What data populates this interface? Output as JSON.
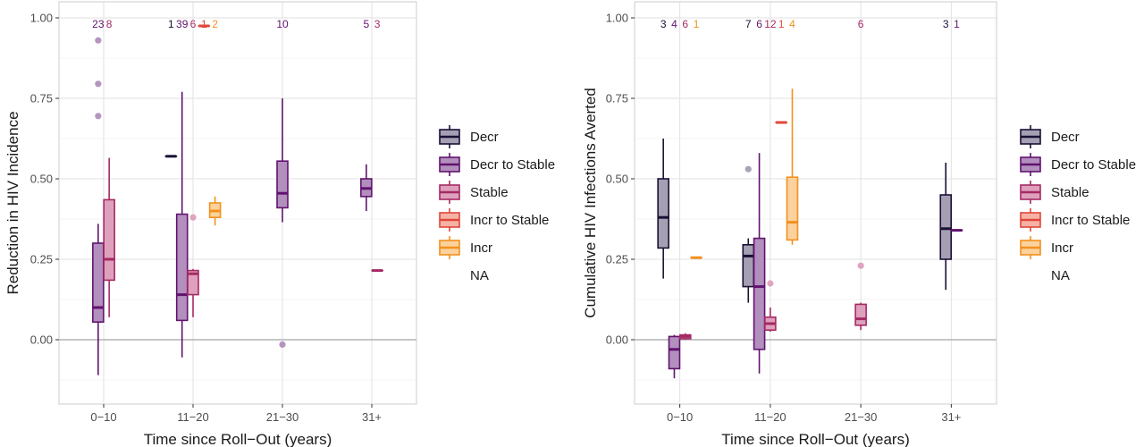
{
  "colors": {
    "Decr": {
      "fill": "#a59fb3",
      "stroke": "#1b1034"
    },
    "Decr to Stable": {
      "fill": "#b28fbd",
      "stroke": "#61136f"
    },
    "Stable": {
      "fill": "#dea0bd",
      "stroke": "#a52a64"
    },
    "Incr to Stable": {
      "fill": "#f6b3a5",
      "stroke": "#e0473a"
    },
    "Incr": {
      "fill": "#fbd29d",
      "stroke": "#f2911e"
    }
  },
  "chart_data": [
    {
      "type": "box",
      "title": "",
      "xlabel": "Time since Roll−Out (years)",
      "ylabel": "Reduction in HIV Incidence",
      "ylim": [
        -0.2,
        1.05
      ],
      "y_ticks": [
        0.0,
        0.25,
        0.5,
        0.75,
        1.0
      ],
      "y_tick_labels": [
        "0.00",
        "0.25",
        "0.50",
        "0.75",
        "1.00"
      ],
      "categories": [
        "0−10",
        "11−20",
        "21−30",
        "31+"
      ],
      "legend": [
        "Decr",
        "Decr to Stable",
        "Stable",
        "Incr to Stable",
        "Incr",
        "NA"
      ],
      "boxes": [
        {
          "group": "0−10",
          "series": "Decr to Stable",
          "n": "23",
          "min": -0.11,
          "q1": 0.055,
          "median": 0.1,
          "q3": 0.3,
          "max": 0.36,
          "outliers": [
            0.93,
            0.795,
            0.695
          ]
        },
        {
          "group": "0−10",
          "series": "Stable",
          "n": "8",
          "min": 0.07,
          "q1": 0.185,
          "median": 0.25,
          "q3": 0.435,
          "max": 0.565,
          "outliers": []
        },
        {
          "group": "11−20",
          "series": "Decr",
          "n": "1",
          "min": 0.57,
          "q1": 0.57,
          "median": 0.57,
          "q3": 0.57,
          "max": 0.57,
          "outliers": []
        },
        {
          "group": "11−20",
          "series": "Decr to Stable",
          "n": "39",
          "min": -0.055,
          "q1": 0.06,
          "median": 0.14,
          "q3": 0.39,
          "max": 0.77,
          "outliers": []
        },
        {
          "group": "11−20",
          "series": "Stable",
          "n": "6",
          "min": 0.07,
          "q1": 0.14,
          "median": 0.205,
          "q3": 0.215,
          "max": 0.22,
          "outliers": [
            0.38
          ]
        },
        {
          "group": "11−20",
          "series": "Incr to Stable",
          "n": "1",
          "min": 0.975,
          "q1": 0.975,
          "median": 0.975,
          "q3": 0.975,
          "max": 0.975,
          "outliers": []
        },
        {
          "group": "11−20",
          "series": "Incr",
          "n": "2",
          "min": 0.355,
          "q1": 0.38,
          "median": 0.4,
          "q3": 0.425,
          "max": 0.445,
          "outliers": []
        },
        {
          "group": "21−30",
          "series": "Decr to Stable",
          "n": "10",
          "min": 0.365,
          "q1": 0.41,
          "median": 0.455,
          "q3": 0.555,
          "max": 0.75,
          "outliers": [
            -0.015
          ]
        },
        {
          "group": "31+",
          "series": "Decr to Stable",
          "n": "5",
          "min": 0.4,
          "q1": 0.445,
          "median": 0.47,
          "q3": 0.5,
          "max": 0.545,
          "outliers": []
        },
        {
          "group": "31+",
          "series": "Stable",
          "n": "3",
          "min": 0.215,
          "q1": 0.215,
          "median": 0.215,
          "q3": 0.215,
          "max": 0.215,
          "outliers": []
        }
      ]
    },
    {
      "type": "box",
      "title": "",
      "xlabel": "Time since Roll−Out (years)",
      "ylabel": "Cumulative HIV Infections Averted",
      "ylim": [
        -0.2,
        1.05
      ],
      "y_ticks": [
        0.0,
        0.25,
        0.5,
        0.75,
        1.0
      ],
      "y_tick_labels": [
        "0.00",
        "0.25",
        "0.50",
        "0.75",
        "1.00"
      ],
      "categories": [
        "0−10",
        "11−20",
        "21−30",
        "31+"
      ],
      "legend": [
        "Decr",
        "Decr to Stable",
        "Stable",
        "Incr to Stable",
        "Incr",
        "NA"
      ],
      "boxes": [
        {
          "group": "0−10",
          "series": "Decr",
          "n": "3",
          "min": 0.19,
          "q1": 0.285,
          "median": 0.38,
          "q3": 0.5,
          "max": 0.625,
          "outliers": []
        },
        {
          "group": "0−10",
          "series": "Decr to Stable",
          "n": "4",
          "min": -0.12,
          "q1": -0.09,
          "median": -0.03,
          "q3": 0.01,
          "max": 0.015,
          "outliers": []
        },
        {
          "group": "0−10",
          "series": "Stable",
          "n": "6",
          "min": 0.0,
          "q1": 0.003,
          "median": 0.01,
          "q3": 0.015,
          "max": 0.02,
          "outliers": []
        },
        {
          "group": "0−10",
          "series": "Incr",
          "n": "1",
          "min": 0.255,
          "q1": 0.255,
          "median": 0.255,
          "q3": 0.255,
          "max": 0.255,
          "outliers": []
        },
        {
          "group": "11−20",
          "series": "Decr",
          "n": "7",
          "min": 0.115,
          "q1": 0.165,
          "median": 0.26,
          "q3": 0.295,
          "max": 0.315,
          "outliers": [
            0.53
          ]
        },
        {
          "group": "11−20",
          "series": "Decr to Stable",
          "n": "6",
          "min": -0.105,
          "q1": -0.03,
          "median": 0.165,
          "q3": 0.315,
          "max": 0.58,
          "outliers": []
        },
        {
          "group": "11−20",
          "series": "Stable",
          "n": "12",
          "min": 0.025,
          "q1": 0.03,
          "median": 0.05,
          "q3": 0.07,
          "max": 0.1,
          "outliers": [
            0.175
          ]
        },
        {
          "group": "11−20",
          "series": "Incr to Stable",
          "n": "1",
          "min": 0.675,
          "q1": 0.675,
          "median": 0.675,
          "q3": 0.675,
          "max": 0.675,
          "outliers": []
        },
        {
          "group": "11−20",
          "series": "Incr",
          "n": "4",
          "min": 0.295,
          "q1": 0.31,
          "median": 0.365,
          "q3": 0.505,
          "max": 0.78,
          "outliers": []
        },
        {
          "group": "21−30",
          "series": "Stable",
          "n": "6",
          "min": 0.03,
          "q1": 0.045,
          "median": 0.065,
          "q3": 0.11,
          "max": 0.115,
          "outliers": [
            0.23
          ]
        },
        {
          "group": "31+",
          "series": "Decr",
          "n": "3",
          "min": 0.155,
          "q1": 0.25,
          "median": 0.345,
          "q3": 0.45,
          "max": 0.55,
          "outliers": []
        },
        {
          "group": "31+",
          "series": "Decr to Stable",
          "n": "1",
          "min": 0.34,
          "q1": 0.34,
          "median": 0.34,
          "q3": 0.34,
          "max": 0.34,
          "outliers": []
        }
      ]
    }
  ]
}
